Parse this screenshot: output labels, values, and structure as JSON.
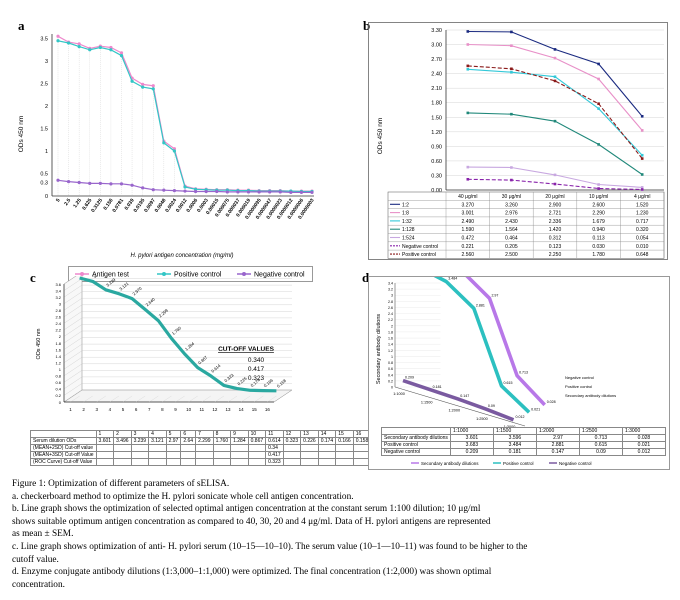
{
  "panels": {
    "a": {
      "label": "a"
    },
    "b": {
      "label": "b"
    },
    "c": {
      "label": "c"
    },
    "d": {
      "label": "d"
    }
  },
  "chart_data": [
    {
      "panel": "a",
      "type": "line",
      "ylabel": "ODs 450 nm",
      "xlabel": "H. pylori antigen concentration (mg/ml)",
      "ylim": [
        0,
        3.6
      ],
      "yticks": [
        "0",
        "0.3",
        "0.5",
        "1",
        "1.5",
        "2",
        "2.5",
        "3",
        "3.5"
      ],
      "categories": [
        "5",
        "2.5",
        "1.25",
        "0.625",
        "0.3125",
        "0.156",
        "0.0781",
        "0.039",
        "0.0195",
        "0.0097",
        "0.0048",
        "0.0024",
        "0.0012",
        "0.0006",
        "0.0003",
        "0.00015",
        "0.000075",
        "0.000037",
        "0.000019",
        "0.0000095",
        "0.0000047",
        "0.0000023",
        "0.0000012",
        "0.0000006",
        "0.0000003"
      ],
      "legend": [
        "Antigen test",
        "Positive control",
        "Negative control"
      ],
      "colors": {
        "antigen": "#ee88cc",
        "positive": "#33c6c6",
        "negative": "#9966cc"
      },
      "series": [
        {
          "name": "Antigen test",
          "values": [
            3.55,
            3.42,
            3.38,
            3.28,
            3.33,
            3.3,
            3.18,
            2.62,
            2.48,
            2.45,
            1.22,
            1.05,
            0.22,
            0.16,
            0.15,
            0.14,
            0.14,
            0.13,
            0.13,
            0.12,
            0.12,
            0.12,
            0.11,
            0.11,
            0.11
          ]
        },
        {
          "name": "Positive control",
          "values": [
            3.45,
            3.4,
            3.32,
            3.25,
            3.3,
            3.25,
            3.12,
            2.55,
            2.42,
            2.38,
            1.18,
            1.0,
            0.2,
            0.15,
            0.14,
            0.13,
            0.13,
            0.12,
            0.12,
            0.11,
            0.11,
            0.11,
            0.11,
            0.1,
            0.1
          ]
        },
        {
          "name": "Negative control",
          "values": [
            0.35,
            0.32,
            0.3,
            0.28,
            0.28,
            0.27,
            0.27,
            0.24,
            0.18,
            0.14,
            0.13,
            0.12,
            0.11,
            0.1,
            0.1,
            0.1,
            0.09,
            0.09,
            0.09,
            0.09,
            0.09,
            0.09,
            0.08,
            0.08,
            0.08
          ]
        }
      ]
    },
    {
      "panel": "b",
      "type": "line",
      "ylabel": "ODs 450 nm",
      "ylim": [
        0,
        3.3
      ],
      "yticks": [
        "0.00",
        "0.30",
        "0.60",
        "0.90",
        "1.20",
        "1.50",
        "1.80",
        "2.10",
        "2.40",
        "2.70",
        "3.00",
        "3.30"
      ],
      "categories": [
        "40 μg/ml",
        "30 μg/ml",
        "20 μg/ml",
        "10 μg/ml",
        "4 μg/ml"
      ],
      "series": [
        {
          "name": "1:2",
          "color": "#1a2a80",
          "dash": false,
          "values": [
            "3.270",
            "3.260",
            "2.900",
            "2.600",
            "1.520"
          ]
        },
        {
          "name": "1:8",
          "color": "#e890c8",
          "dash": false,
          "values": [
            "3.001",
            "2.976",
            "2.721",
            "2.290",
            "1.230"
          ]
        },
        {
          "name": "1:32",
          "color": "#33c8d8",
          "dash": false,
          "values": [
            "2.490",
            "2.430",
            "2.336",
            "1.679",
            "0.717"
          ]
        },
        {
          "name": "1:128",
          "color": "#20887a",
          "dash": false,
          "values": [
            "1.590",
            "1.564",
            "1.420",
            "0.940",
            "0.320"
          ]
        },
        {
          "name": "1:524",
          "color": "#c8a8e0",
          "dash": false,
          "values": [
            "0.472",
            "0.464",
            "0.312",
            "0.113",
            "0.054"
          ]
        },
        {
          "name": "Negative control",
          "color": "#8822aa",
          "dash": true,
          "values": [
            "0.221",
            "0.205",
            "0.123",
            "0.030",
            "0.010"
          ]
        },
        {
          "name": "Positive control",
          "color": "#8a1a1a",
          "dash": true,
          "values": [
            "2.560",
            "2.500",
            "2.250",
            "1.780",
            "0.648"
          ]
        }
      ]
    },
    {
      "panel": "c",
      "type": "line",
      "ylabel": "ODs 450 nm",
      "ylim": [
        0,
        3.6
      ],
      "yticks": [
        "0",
        "0.2",
        "0.4",
        "0.6",
        "0.8",
        "1",
        "1.2",
        "1.4",
        "1.6",
        "1.8",
        "2",
        "2.2",
        "2.4",
        "2.6",
        "2.8",
        "3",
        "3.2",
        "3.4",
        "3.6"
      ],
      "categories": [
        "1",
        "2",
        "3",
        "4",
        "5",
        "6",
        "7",
        "8",
        "9",
        "10",
        "11",
        "12",
        "13",
        "14",
        "15",
        "16"
      ],
      "annotation_title": "CUT-OFF VALUES",
      "annotation_values": [
        "0.340",
        "0.417",
        "0.323"
      ],
      "point_labels": [
        "3.601",
        "3.496",
        "3.239",
        "3.121",
        "2.970",
        "2.640",
        "2.299",
        "1.760",
        "1.284",
        "0.867",
        "0.614",
        "0.323",
        "0.226",
        "0.174",
        "0.166",
        "0.158"
      ],
      "table_header": [
        "",
        "1",
        "2",
        "3",
        "4",
        "5",
        "6",
        "7",
        "8",
        "9",
        "10",
        "11",
        "12",
        "13",
        "14",
        "15",
        "16"
      ],
      "table_rows": [
        {
          "name": "Serum dilution ODs",
          "values": [
            "3.601",
            "3.496",
            "3.239",
            "3.121",
            "2.97",
            "2.64",
            "2.299",
            "1.760",
            "1.284",
            "0.867",
            "0.614",
            "0.323",
            "0.226",
            "0.174",
            "0.166",
            "0.158"
          ]
        },
        {
          "name": "(MEAN+2SD) Cut-off value",
          "values": [
            "",
            "",
            "",
            "",
            "",
            "",
            "",
            "",
            "",
            "",
            "0.34",
            "",
            "",
            "",
            "",
            ""
          ]
        },
        {
          "name": "(MEAN+3SD) Cut-off Value",
          "values": [
            "",
            "",
            "",
            "",
            "",
            "",
            "",
            "",
            "",
            "",
            "0.417",
            "",
            "",
            "",
            "",
            ""
          ]
        },
        {
          "name": "(ROC Curve) Cut-off Value",
          "values": [
            "",
            "",
            "",
            "",
            "",
            "",
            "",
            "",
            "",
            "",
            "0.323",
            "",
            "",
            "",
            "",
            ""
          ]
        }
      ],
      "series": [
        {
          "name": "Serum dilution ODs",
          "color": "#2aa8a0",
          "values": [
            3.601,
            3.496,
            3.239,
            3.121,
            2.97,
            2.64,
            2.299,
            1.76,
            1.284,
            0.867,
            0.614,
            0.323,
            0.226,
            0.174,
            0.166,
            0.158
          ]
        }
      ]
    },
    {
      "panel": "d",
      "type": "line",
      "ylabel": "Secondary antibody dilutions",
      "yticks": [
        "0",
        "0.2",
        "0.4",
        "0.6",
        "0.8",
        "1",
        "1.2",
        "1.4",
        "1.6",
        "1.8",
        "2",
        "2.2",
        "2.4",
        "2.6",
        "2.8",
        "3",
        "3.2",
        "3.4"
      ],
      "categories": [
        "1:1000",
        "1:1500",
        "1:2000",
        "1:2500",
        "1:3000"
      ],
      "axis_series_labels": [
        "Negative control",
        "Positive control",
        "Secondary antibody dilutions"
      ],
      "table_header": [
        "",
        "1:1000",
        "1:1500",
        "1:2000",
        "1:2500",
        "1:3000"
      ],
      "table_rows": [
        {
          "name": "Secondary antibody dilutions",
          "values": [
            "3.601",
            "3.596",
            "2.97",
            "0.713",
            "0.028"
          ]
        },
        {
          "name": "Positive control",
          "values": [
            "3.683",
            "3.484",
            "2.881",
            "0.615",
            "0.021"
          ]
        },
        {
          "name": "Negative control",
          "values": [
            "0.209",
            "0.181",
            "0.147",
            "0.09",
            "0.012"
          ]
        }
      ],
      "legend": [
        "Secondary antibody dilutions",
        "Positive control",
        "Negative control"
      ],
      "series": [
        {
          "name": "Secondary antibody dilutions",
          "color": "#b878e8",
          "values": [
            3.601,
            3.596,
            2.97,
            0.713,
            0.028
          ]
        },
        {
          "name": "Positive control",
          "color": "#2cc0c0",
          "values": [
            3.683,
            3.484,
            2.881,
            0.615,
            0.021
          ]
        },
        {
          "name": "Negative control",
          "color": "#7a5aa0",
          "values": [
            0.209,
            0.181,
            0.147,
            0.09,
            0.012
          ]
        }
      ]
    }
  ],
  "caption": {
    "title": "Figure 1: Optimization of different parameters of sELISA.",
    "a": "a. checkerboard method to optimize the H. pylori sonicate whole cell antigen concentration.",
    "b1": "b. Line graph shows the optimization of selected optimal antigen concentration at the constant serum 1:100 dilution; 10 μg/ml",
    "b2": "shows suitable optimum antigen concentration as compared to 40, 30, 20 and 4 μg/ml. Data of H. pylori antigens are represented",
    "b3": "as mean ± SEM.",
    "c1": "c. Line graph shows optimization of anti- H. pylori serum (10–15—10–10). The serum value (10–1—10–11) was found to be higher to the",
    "c2": "cutoff value.",
    "d1": "d. Enzyme conjugate antibody dilutions (1:3,000–1:1,000) were optimized. The final concentration (1:2,000) was shown optimal",
    "d2": "concentration."
  }
}
